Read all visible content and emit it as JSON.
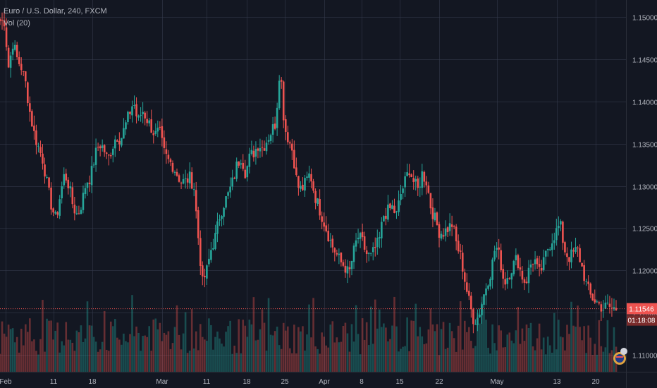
{
  "header": {
    "symbol_line": "Euro / U.S. Dollar, 240, FXCM",
    "indicator_line": "Vol (20)"
  },
  "badges": {
    "last_price": "1.11546",
    "countdown": "01:18:08"
  },
  "colors": {
    "background": "#131722",
    "grid": "#363c4e",
    "up": "#26a69a",
    "down": "#ef5350",
    "text": "#b2b5be"
  },
  "chart_data": {
    "type": "candlestick",
    "title": "Euro / U.S. Dollar, 240, FXCM",
    "indicator": "Vol (20)",
    "ylim": [
      1.108,
      1.152
    ],
    "y_ticks": [
      "1.11000",
      "1.11500",
      "1.12000",
      "1.12500",
      "1.13000",
      "1.13500",
      "1.14000",
      "1.14500",
      "1.15000"
    ],
    "x_ticks": [
      "Feb",
      "11",
      "18",
      "Mar",
      "11",
      "18",
      "25",
      "Apr",
      "8",
      "15",
      "22",
      "May",
      "13",
      "20"
    ],
    "last_price": 1.11546,
    "grid": true,
    "close_path": [
      1.1495,
      1.1495,
      1.144,
      1.147,
      1.145,
      1.144,
      1.142,
      1.1385,
      1.136,
      1.1345,
      1.133,
      1.13,
      1.1275,
      1.126,
      1.129,
      1.1315,
      1.13,
      1.1275,
      1.1265,
      1.128,
      1.1305,
      1.131,
      1.1335,
      1.135,
      1.1345,
      1.133,
      1.1345,
      1.136,
      1.1355,
      1.137,
      1.1385,
      1.14,
      1.1375,
      1.139,
      1.138,
      1.137,
      1.136,
      1.1365,
      1.134,
      1.133,
      1.1325,
      1.1315,
      1.1305,
      1.1305,
      1.131,
      1.13,
      1.124,
      1.1185,
      1.12,
      1.1225,
      1.124,
      1.1265,
      1.128,
      1.129,
      1.1305,
      1.1325,
      1.1335,
      1.1315,
      1.1335,
      1.134,
      1.135,
      1.1345,
      1.1355,
      1.1365,
      1.1375,
      1.1445,
      1.137,
      1.1355,
      1.134,
      1.13,
      1.1295,
      1.1305,
      1.1315,
      1.129,
      1.1275,
      1.126,
      1.1245,
      1.123,
      1.122,
      1.121,
      1.1205,
      1.1195,
      1.122,
      1.124,
      1.1235,
      1.122,
      1.1215,
      1.1225,
      1.1235,
      1.1265,
      1.127,
      1.1275,
      1.1265,
      1.129,
      1.1305,
      1.132,
      1.1305,
      1.1295,
      1.1315,
      1.1305,
      1.1275,
      1.126,
      1.1245,
      1.1245,
      1.125,
      1.1255,
      1.123,
      1.1215,
      1.1185,
      1.116,
      1.114,
      1.1145,
      1.1165,
      1.1185,
      1.12,
      1.123,
      1.1215,
      1.1185,
      1.1195,
      1.1205,
      1.1215,
      1.1195,
      1.1185,
      1.1205,
      1.1215,
      1.1195,
      1.1205,
      1.1225,
      1.1235,
      1.1245,
      1.1255,
      1.1225,
      1.1215,
      1.122,
      1.1225,
      1.1205,
      1.1185,
      1.117,
      1.1165,
      1.116,
      1.1155,
      1.1158,
      1.1155,
      1.11546
    ]
  }
}
